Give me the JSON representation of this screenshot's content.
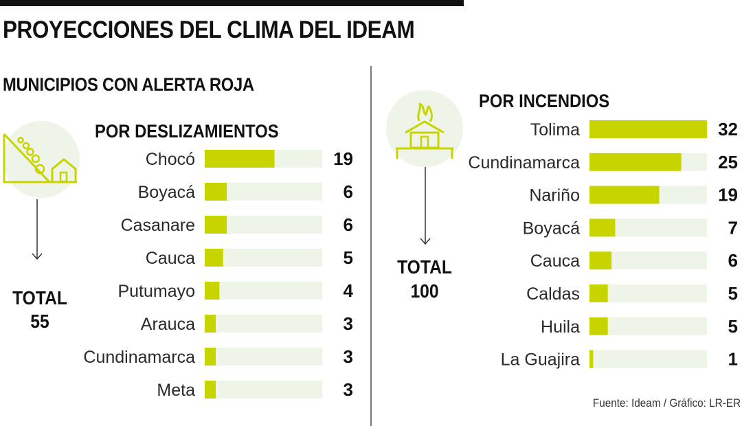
{
  "title": "PROYECCIONES DEL CLIMA DEL IDEAM",
  "subtitle": "MUNICIPIOS CON ALERTA ROJA",
  "source": "Fuente: Ideam / Gráfico: LR-ER",
  "colors": {
    "bar": "#c8d400",
    "track": "#eef4e8",
    "text": "#111111"
  },
  "chart_data": [
    {
      "type": "bar",
      "orientation": "horizontal",
      "title": "POR DESLIZAMIENTOS",
      "icon": "landslide-icon",
      "total_label": "TOTAL",
      "total": 55,
      "xlim": [
        0,
        32
      ],
      "categories": [
        "Chocó",
        "Boyacá",
        "Casanare",
        "Cauca",
        "Putumayo",
        "Arauca",
        "Cundinamarca",
        "Meta"
      ],
      "values": [
        19,
        6,
        6,
        5,
        4,
        3,
        3,
        3
      ]
    },
    {
      "type": "bar",
      "orientation": "horizontal",
      "title": "POR INCENDIOS",
      "icon": "fire-house-icon",
      "total_label": "TOTAL",
      "total": 100,
      "xlim": [
        0,
        32
      ],
      "categories": [
        "Tolima",
        "Cundinamarca",
        "Nariño",
        "Boyacá",
        "Cauca",
        "Caldas",
        "Huila",
        "La Guajira"
      ],
      "values": [
        32,
        25,
        19,
        7,
        6,
        5,
        5,
        1
      ]
    }
  ]
}
